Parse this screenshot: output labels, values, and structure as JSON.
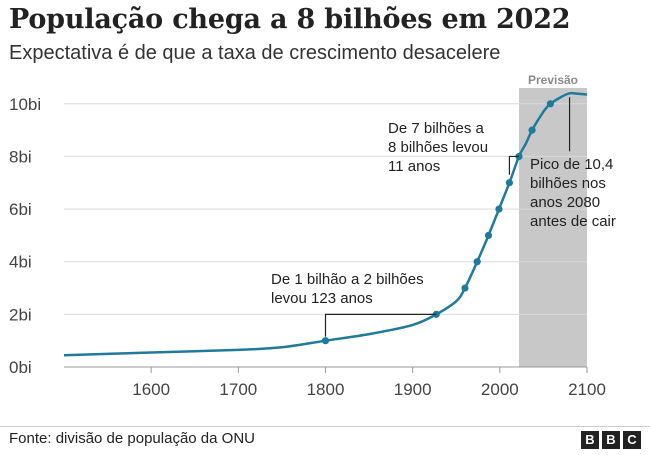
{
  "title": "População chega a 8 bilhões em 2022",
  "subtitle": "Expectativa é de que a taxa de crescimento desacelere",
  "source": "Fonte: divisão de população da ONU",
  "logo": [
    "B",
    "B",
    "C"
  ],
  "colors": {
    "line": "#1f7a9c",
    "forecast_band": "#c8c8c8",
    "grid": "#d9d9d9",
    "text": "#222222"
  },
  "chart_data": {
    "type": "line",
    "title": "População chega a 8 bilhões em 2022",
    "xlabel": "",
    "ylabel": "",
    "xlim": [
      1500,
      2100
    ],
    "ylim": [
      0,
      10.6
    ],
    "grid": "horizontal",
    "x_ticks": [
      1600,
      1700,
      1800,
      1900,
      2000,
      2100
    ],
    "x_tick_labels": [
      "1600",
      "1700",
      "1800",
      "1900",
      "2000",
      "2100"
    ],
    "y_ticks": [
      0,
      2,
      4,
      6,
      8,
      10
    ],
    "y_tick_labels": [
      "0bi",
      "2bi",
      "4bi",
      "6bi",
      "8bi",
      "10bi"
    ],
    "forecast": {
      "label": "Previsão",
      "from": 2022,
      "to": 2100
    },
    "series": [
      {
        "x": [
          1500,
          1600,
          1700,
          1750,
          1800,
          1850,
          1900,
          1927,
          1950,
          1960,
          1974,
          1987,
          1999,
          2011,
          2022,
          2030,
          2037,
          2050,
          2058,
          2070,
          2080,
          2090,
          2100
        ],
        "y": [
          0.45,
          0.55,
          0.65,
          0.75,
          1.0,
          1.25,
          1.6,
          2.0,
          2.5,
          3.0,
          4.0,
          5.0,
          6.0,
          7.0,
          8.0,
          8.5,
          9.0,
          9.7,
          10.0,
          10.25,
          10.4,
          10.38,
          10.35
        ]
      }
    ],
    "markers": [
      {
        "x": 1800,
        "y": 1
      },
      {
        "x": 1927,
        "y": 2
      },
      {
        "x": 1960,
        "y": 3
      },
      {
        "x": 1974,
        "y": 4
      },
      {
        "x": 1987,
        "y": 5
      },
      {
        "x": 1999,
        "y": 6
      },
      {
        "x": 2011,
        "y": 7
      },
      {
        "x": 2022,
        "y": 8
      },
      {
        "x": 2037,
        "y": 9
      },
      {
        "x": 2058,
        "y": 10
      }
    ],
    "annotations": [
      {
        "lines": [
          "De 1 bilhão a 2 bilhões",
          "levou 123 anos"
        ],
        "x_from": 1800,
        "x_to": 1927,
        "y": 2
      },
      {
        "lines": [
          "De 7 bilhões a",
          "8 bilhões levou",
          "11 anos"
        ],
        "x_from": 2011,
        "x_to": 2022,
        "y": 8
      },
      {
        "lines": [
          "Pico de 10,4",
          "bilhões nos",
          "anos 2080",
          "antes de cair"
        ],
        "x": 2080,
        "y": 10.4
      }
    ]
  }
}
